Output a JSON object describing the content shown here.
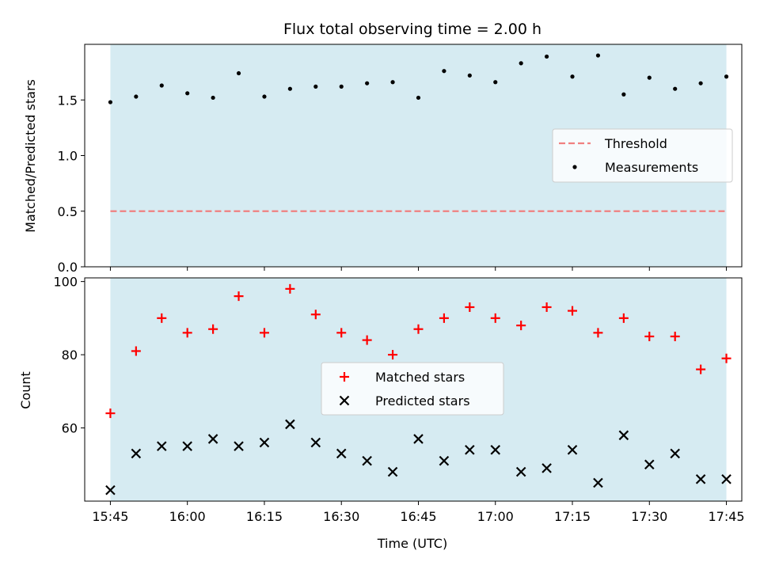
{
  "figure": {
    "title": "Flux total observing time = 2.00 h",
    "xlabel": "Time (UTC)"
  },
  "colors": {
    "band": "#add8e6",
    "threshold": "#f08080",
    "matched": "#ff0000",
    "predicted": "#000000",
    "measurement": "#000000"
  },
  "chart_data": [
    {
      "type": "scatter",
      "panel": "top",
      "ylabel": "Matched/Predicted stars",
      "ylim": [
        0,
        2.0
      ],
      "yticks": [
        0.0,
        0.5,
        1.0,
        1.5
      ],
      "ytick_labels": [
        "0.0",
        "0.5",
        "1.0",
        "1.5"
      ],
      "xlim": [
        "15:40",
        "17:48"
      ],
      "shaded_interval": [
        "15:45",
        "17:45"
      ],
      "threshold": {
        "name": "Threshold",
        "value": 0.5,
        "style": "dashed"
      },
      "legend": {
        "position": "center-right",
        "entries": [
          "Threshold",
          "Measurements"
        ]
      },
      "series": [
        {
          "name": "Measurements",
          "marker": "dot",
          "x": [
            "15:45",
            "15:50",
            "15:55",
            "16:00",
            "16:05",
            "16:10",
            "16:15",
            "16:20",
            "16:25",
            "16:30",
            "16:35",
            "16:40",
            "16:45",
            "16:50",
            "16:55",
            "17:00",
            "17:05",
            "17:10",
            "17:15",
            "17:20",
            "17:25",
            "17:30",
            "17:35",
            "17:40",
            "17:45"
          ],
          "values": [
            1.48,
            1.53,
            1.63,
            1.56,
            1.52,
            1.74,
            1.53,
            1.6,
            1.62,
            1.62,
            1.65,
            1.66,
            1.52,
            1.76,
            1.72,
            1.66,
            1.83,
            1.89,
            1.71,
            1.9,
            1.55,
            1.7,
            1.6,
            1.65,
            1.71
          ]
        }
      ]
    },
    {
      "type": "scatter",
      "panel": "bottom",
      "ylabel": "Count",
      "ylim": [
        40,
        101
      ],
      "yticks": [
        60,
        80,
        100
      ],
      "ytick_labels": [
        "60",
        "80",
        "100"
      ],
      "xlim": [
        "15:40",
        "17:48"
      ],
      "xticks": [
        "15:45",
        "16:00",
        "16:15",
        "16:30",
        "16:45",
        "17:00",
        "17:15",
        "17:30",
        "17:45"
      ],
      "shaded_interval": [
        "15:45",
        "17:45"
      ],
      "legend": {
        "position": "center",
        "entries": [
          "Matched stars",
          "Predicted stars"
        ]
      },
      "series": [
        {
          "name": "Matched stars",
          "marker": "plus",
          "x": [
            "15:45",
            "15:50",
            "15:55",
            "16:00",
            "16:05",
            "16:10",
            "16:15",
            "16:20",
            "16:25",
            "16:30",
            "16:35",
            "16:40",
            "16:45",
            "16:50",
            "16:55",
            "17:00",
            "17:05",
            "17:10",
            "17:15",
            "17:20",
            "17:25",
            "17:30",
            "17:35",
            "17:40",
            "17:45"
          ],
          "values": [
            64,
            81,
            90,
            86,
            87,
            96,
            86,
            98,
            91,
            86,
            84,
            80,
            87,
            90,
            93,
            90,
            88,
            93,
            92,
            86,
            90,
            85,
            85,
            76,
            79
          ]
        },
        {
          "name": "Predicted stars",
          "marker": "x",
          "x": [
            "15:45",
            "15:50",
            "15:55",
            "16:00",
            "16:05",
            "16:10",
            "16:15",
            "16:20",
            "16:25",
            "16:30",
            "16:35",
            "16:40",
            "16:45",
            "16:50",
            "16:55",
            "17:00",
            "17:05",
            "17:10",
            "17:15",
            "17:20",
            "17:25",
            "17:30",
            "17:35",
            "17:40",
            "17:45"
          ],
          "values": [
            43,
            53,
            55,
            55,
            57,
            55,
            56,
            61,
            56,
            53,
            51,
            48,
            57,
            51,
            54,
            54,
            48,
            49,
            54,
            45,
            58,
            50,
            53,
            46,
            46
          ]
        }
      ]
    }
  ]
}
